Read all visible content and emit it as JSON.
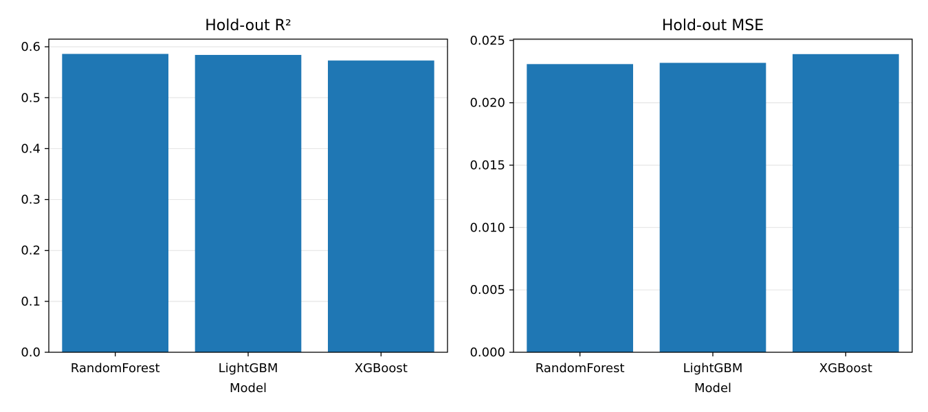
{
  "chart_data": [
    {
      "type": "bar",
      "title": "Hold-out R²",
      "xlabel": "Model",
      "ylabel": "",
      "categories": [
        "RandomForest",
        "LightGBM",
        "XGBoost"
      ],
      "values": [
        0.586,
        0.584,
        0.573
      ],
      "ylim": [
        0,
        0.615
      ],
      "yticks": [
        0.0,
        0.1,
        0.2,
        0.3,
        0.4,
        0.5,
        0.6
      ],
      "ytick_labels": [
        "0.0",
        "0.1",
        "0.2",
        "0.3",
        "0.4",
        "0.5",
        "0.6"
      ],
      "grid": "horizontal",
      "bar_color": "#1f77b4"
    },
    {
      "type": "bar",
      "title": "Hold-out MSE",
      "xlabel": "Model",
      "ylabel": "",
      "categories": [
        "RandomForest",
        "LightGBM",
        "XGBoost"
      ],
      "values": [
        0.0231,
        0.0232,
        0.0239
      ],
      "ylim": [
        0,
        0.0251
      ],
      "yticks": [
        0.0,
        0.005,
        0.01,
        0.015,
        0.02,
        0.025
      ],
      "ytick_labels": [
        "0.000",
        "0.005",
        "0.010",
        "0.015",
        "0.020",
        "0.025"
      ],
      "grid": "horizontal",
      "bar_color": "#1f77b4"
    }
  ]
}
